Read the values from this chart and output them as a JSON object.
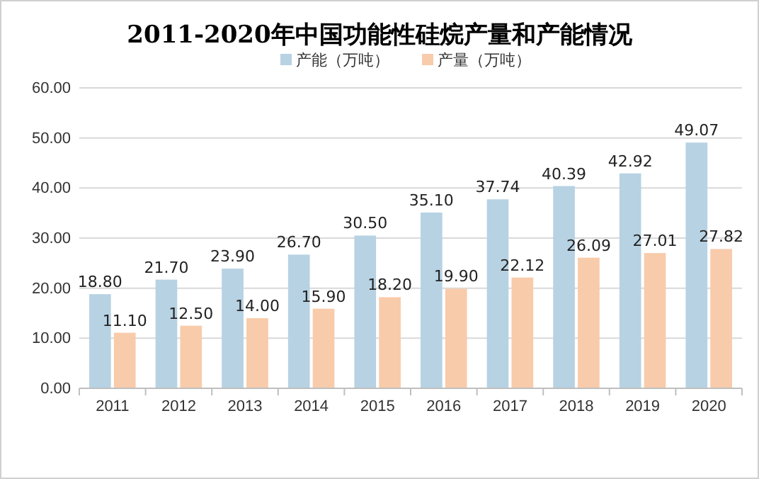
{
  "chart_data": {
    "type": "bar",
    "title": "2011-2020年中国功能性硅烷产量和产能情况",
    "categories": [
      "2011",
      "2012",
      "2013",
      "2014",
      "2015",
      "2016",
      "2017",
      "2018",
      "2019",
      "2020"
    ],
    "series": [
      {
        "name": "产能（万吨）",
        "color": "#b7d2e3",
        "values": [
          18.8,
          21.7,
          23.9,
          26.7,
          30.5,
          35.1,
          37.74,
          40.39,
          42.92,
          49.07
        ],
        "value_labels": [
          "18.80",
          "21.70",
          "23.90",
          "26.70",
          "30.50",
          "35.10",
          "37.74",
          "40.39",
          "42.92",
          "49.07"
        ]
      },
      {
        "name": "产量（万吨）",
        "color": "#f8cbab",
        "values": [
          11.1,
          12.5,
          14.0,
          15.9,
          18.2,
          19.9,
          22.12,
          26.09,
          27.01,
          27.82
        ],
        "value_labels": [
          "11.10",
          "12.50",
          "14.00",
          "15.90",
          "18.20",
          "19.90",
          "22.12",
          "26.09",
          "27.01",
          "27.82"
        ]
      }
    ],
    "ylim": [
      0,
      60
    ],
    "yticks": [
      {
        "value": 0,
        "label": "0.00"
      },
      {
        "value": 10,
        "label": "10.00"
      },
      {
        "value": 20,
        "label": "20.00"
      },
      {
        "value": 30,
        "label": "30.00"
      },
      {
        "value": 40,
        "label": "40.00"
      },
      {
        "value": 50,
        "label": "50.00"
      },
      {
        "value": 60,
        "label": "60.00"
      }
    ],
    "grid": "y",
    "legend": "top"
  }
}
